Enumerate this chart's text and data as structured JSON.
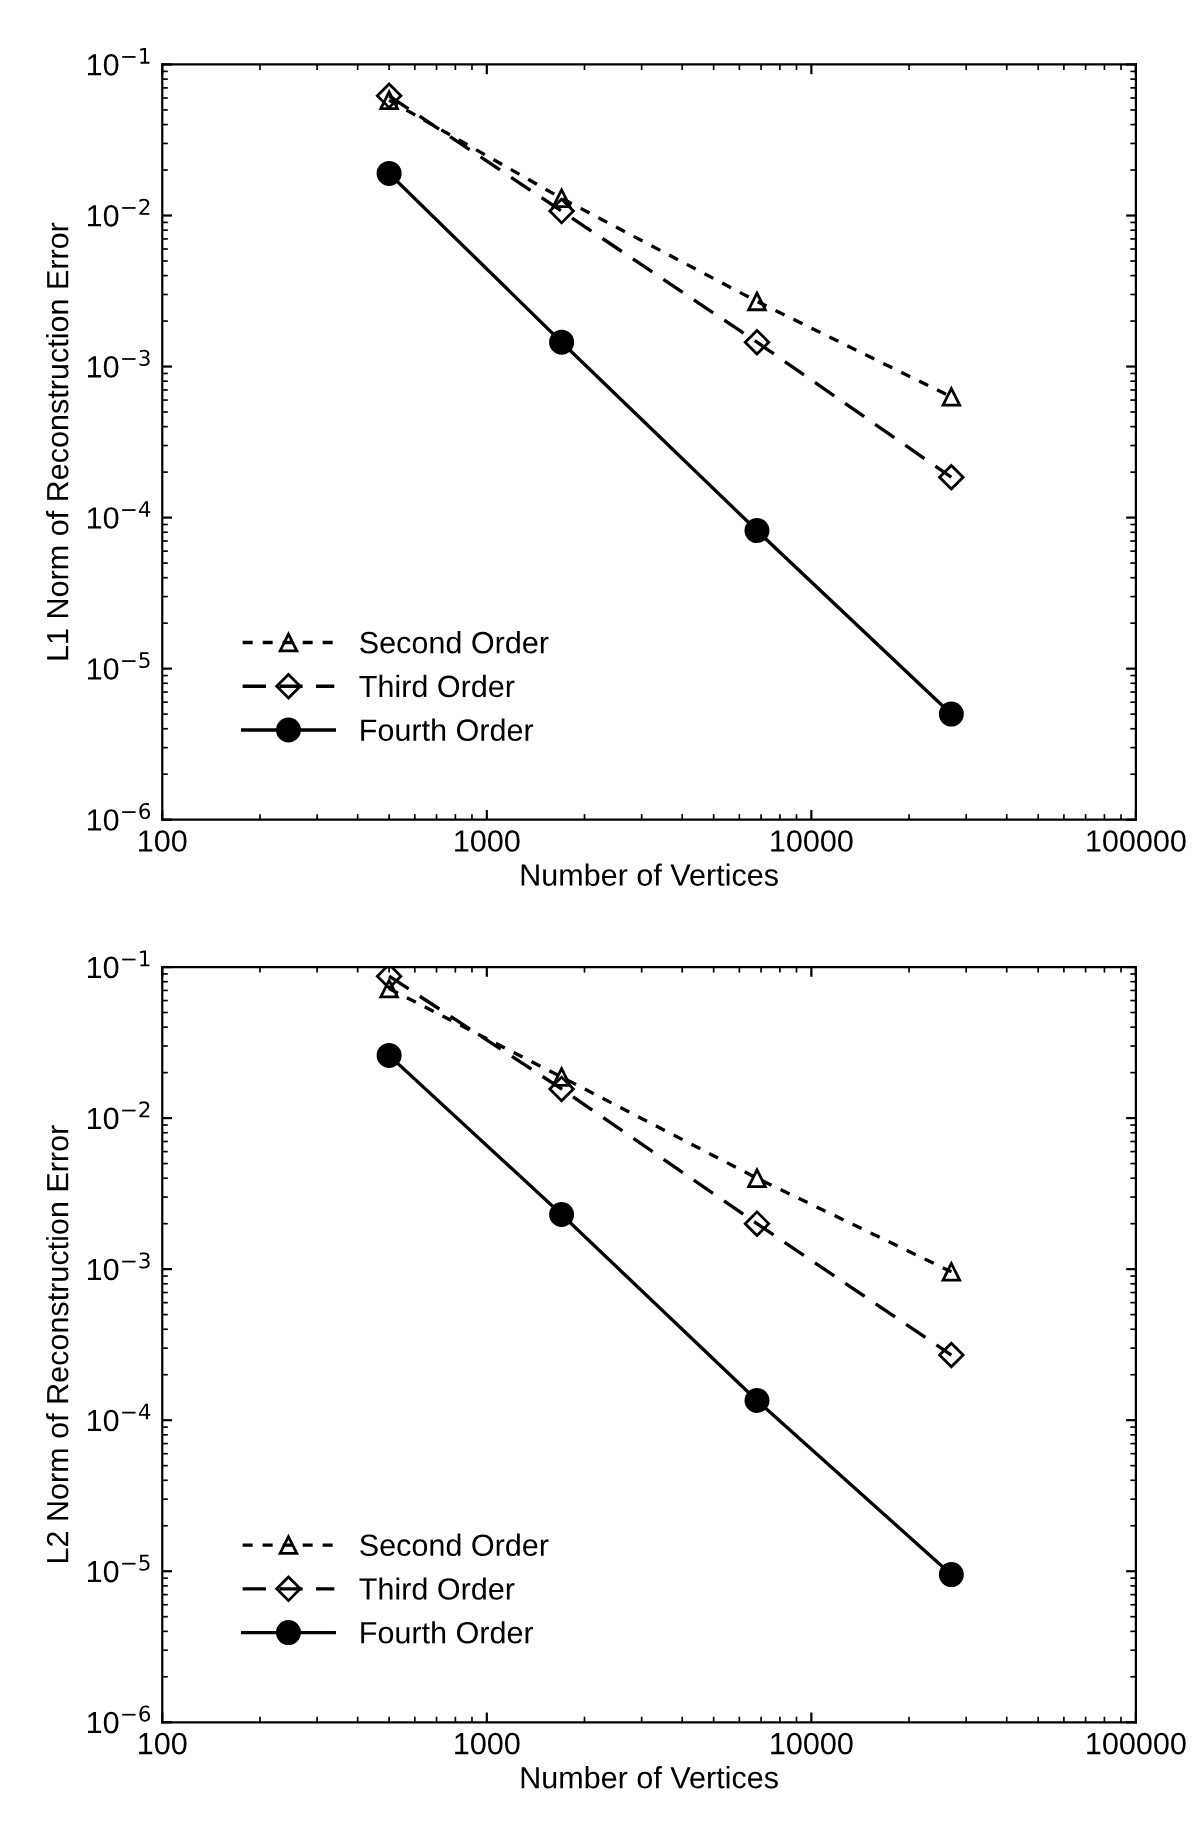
{
  "chart_data": [
    {
      "type": "line",
      "xlabel": "Number of Vertices",
      "ylabel": "L1 Norm of Reconstruction Error",
      "log": "xy",
      "grid": false,
      "legend": "bottom left",
      "x": [
        500,
        1700,
        6800,
        27000
      ],
      "xlim": [
        100,
        100000
      ],
      "xticks": [
        100,
        1000,
        10000,
        100000
      ],
      "ylim": [
        1e-06,
        0.1
      ],
      "yticks": [
        {
          "value": 1e-06,
          "label": "10$^{−6}$"
        },
        {
          "value": 1e-05,
          "label": "10$^{−5}$"
        },
        {
          "value": 0.0001,
          "label": "10$^{−4}$"
        },
        {
          "value": 0.001,
          "label": "10$^{−3}$"
        },
        {
          "value": 0.01,
          "label": "10$^{−2}$"
        },
        {
          "value": 0.1,
          "label": "10$^{−1}$"
        }
      ],
      "series": [
        {
          "name": "Second Order",
          "color": "#000000",
          "marker": "triangle",
          "line_style": "dashed",
          "values": [
            0.058,
            0.013,
            0.0027,
            0.00063
          ]
        },
        {
          "name": "Third Order",
          "color": "#000000",
          "marker": "diamond",
          "line_style": "dashed",
          "values": [
            0.062,
            0.0107,
            0.00145,
            0.000185
          ]
        },
        {
          "name": "Fourth Order",
          "color": "#000000",
          "marker": "circle",
          "line_style": "solid",
          "values": [
            0.019,
            0.00145,
            8.2e-05,
            5e-06
          ]
        }
      ]
    },
    {
      "type": "line",
      "xlabel": "Number of Vertices",
      "ylabel": "L2 Norm of Reconstruction Error",
      "log": "xy",
      "grid": false,
      "legend": "bottom left",
      "x": [
        500,
        1700,
        6800,
        27000
      ],
      "xlim": [
        100,
        100000
      ],
      "xticks": [
        100,
        1000,
        10000,
        100000
      ],
      "ylim": [
        1e-06,
        0.1
      ],
      "yticks": [
        {
          "value": 1e-06,
          "label": "10$^{−6}$"
        },
        {
          "value": 1e-05,
          "label": "10$^{−5}$"
        },
        {
          "value": 0.0001,
          "label": "10$^{−4}$"
        },
        {
          "value": 0.001,
          "label": "10$^{−3}$"
        },
        {
          "value": 0.01,
          "label": "10$^{−2}$"
        },
        {
          "value": 0.1,
          "label": "10$^{−1}$"
        }
      ],
      "series": [
        {
          "name": "Second Order",
          "color": "#000000",
          "marker": "triangle",
          "line_style": "dashed",
          "values": [
            0.072,
            0.0187,
            0.004,
            0.00096
          ]
        },
        {
          "name": "Third Order",
          "color": "#000000",
          "marker": "diamond",
          "line_style": "dashed",
          "values": [
            0.087,
            0.0156,
            0.002,
            0.00027
          ]
        },
        {
          "name": "Fourth Order",
          "color": "#000000",
          "marker": "circle",
          "line_style": "solid",
          "values": [
            0.026,
            0.0023,
            0.000135,
            9.5e-06
          ]
        }
      ]
    }
  ]
}
